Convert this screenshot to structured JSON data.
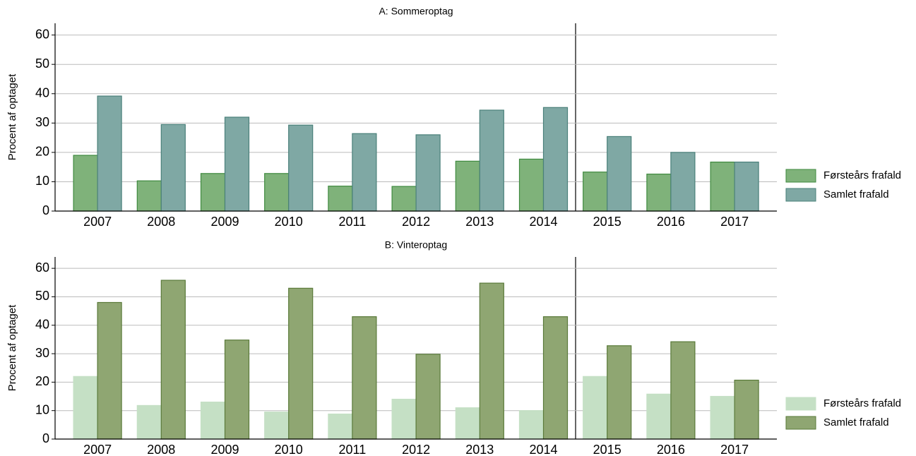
{
  "chart_data": [
    {
      "type": "bar",
      "title": "A: Sommeroptag",
      "ylabel": "Procent af optaget",
      "categories": [
        "2007",
        "2008",
        "2009",
        "2010",
        "2011",
        "2012",
        "2013",
        "2014",
        "2015",
        "2016",
        "2017"
      ],
      "series": [
        {
          "name": "Førsteårs frafald",
          "color": "#7fb27a",
          "edge": "#3f8a3f",
          "values": [
            19,
            10.3,
            12.8,
            12.8,
            8.5,
            8.4,
            17,
            17.7,
            13.3,
            12.6,
            16.7
          ]
        },
        {
          "name": "Samlet frafald",
          "color": "#7fa8a4",
          "edge": "#4a807a",
          "values": [
            39.2,
            29.5,
            32,
            29.3,
            26.4,
            26,
            34.4,
            35.3,
            25.4,
            20,
            16.7
          ]
        }
      ],
      "ylim": [
        0,
        64
      ],
      "yticks": [
        0,
        10,
        20,
        30,
        40,
        50,
        60
      ],
      "grid": true,
      "legend": "right"
    },
    {
      "type": "bar",
      "title": "B: Vinteroptag",
      "ylabel": "Procent af optaget",
      "categories": [
        "2007",
        "2008",
        "2009",
        "2010",
        "2011",
        "2012",
        "2013",
        "2014",
        "2015",
        "2016",
        "2017"
      ],
      "series": [
        {
          "name": "Førsteårs frafald",
          "color": "#c5e0c5",
          "edge": "#c5e0c5",
          "values": [
            22,
            11.8,
            13,
            9.5,
            8.8,
            14,
            11,
            10,
            22,
            15.8,
            15
          ]
        },
        {
          "name": "Samlet frafald",
          "color": "#8fa672",
          "edge": "#5a7a3a",
          "values": [
            48,
            55.8,
            34.8,
            53,
            43,
            29.8,
            54.8,
            43,
            32.8,
            34.2,
            20.7
          ]
        }
      ],
      "ylim": [
        0,
        64
      ],
      "yticks": [
        0,
        10,
        20,
        30,
        40,
        50,
        60
      ],
      "grid": true,
      "legend": "right"
    }
  ]
}
